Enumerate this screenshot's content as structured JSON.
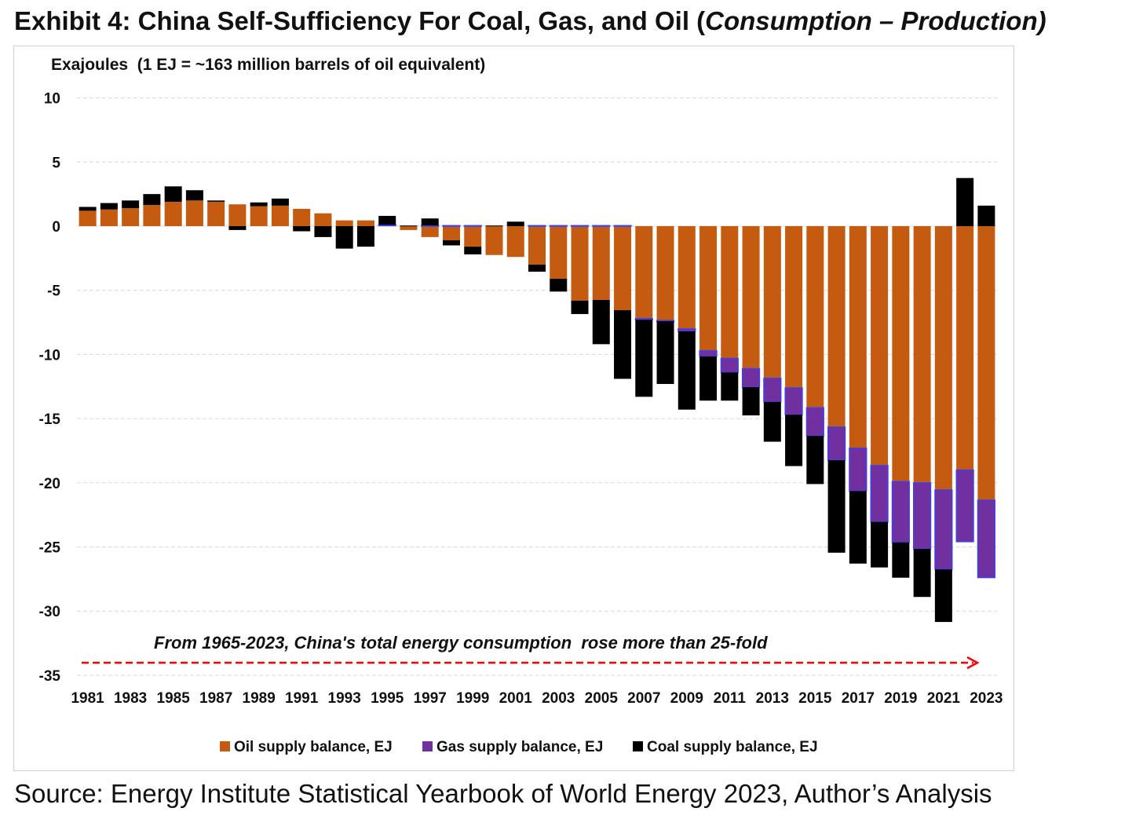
{
  "title_main": "Exhibit 4: China Self-Sufficiency For Coal, Gas, and Oil (",
  "title_italic": "Consumption – Production)",
  "source": "Source: Energy Institute Statistical Yearbook of World Energy 2023, Author’s Analysis",
  "chart_data": {
    "type": "bar",
    "stacked": true,
    "ylabel": "Exajoules  (1 EJ = ~163 million barrels of oil equivalent)",
    "ylim": [
      -35,
      10
    ],
    "yticks": [
      10,
      5,
      0,
      -5,
      -10,
      -15,
      -20,
      -25,
      -30,
      -35
    ],
    "grid": true,
    "legend_placement": "bottom",
    "annotation": "From 1965-2023, China's total energy consumption  rose more than 25-fold",
    "categories": [
      1981,
      1982,
      1983,
      1984,
      1985,
      1986,
      1987,
      1988,
      1989,
      1990,
      1991,
      1992,
      1993,
      1994,
      1995,
      1996,
      1997,
      1998,
      1999,
      2000,
      2001,
      2002,
      2003,
      2004,
      2005,
      2006,
      2007,
      2008,
      2009,
      2010,
      2011,
      2012,
      2013,
      2014,
      2015,
      2016,
      2017,
      2018,
      2019,
      2020,
      2021,
      2022,
      2023
    ],
    "xtick_labels": [
      "1981",
      "1983",
      "1985",
      "1987",
      "1989",
      "1991",
      "1993",
      "1995",
      "1997",
      "1999",
      "2001",
      "2003",
      "2005",
      "2007",
      "2009",
      "2011",
      "2013",
      "2015",
      "2017",
      "2019",
      "2021",
      "2023"
    ],
    "series": [
      {
        "name": "Oil supply balance, EJ",
        "color": "#C55A11",
        "values": [
          1.2,
          1.3,
          1.4,
          1.65,
          1.9,
          2.0,
          1.9,
          1.7,
          1.55,
          1.6,
          1.35,
          1.0,
          0.45,
          0.45,
          0.05,
          -0.3,
          -0.85,
          -1.1,
          -1.6,
          -2.25,
          -2.4,
          -3.0,
          -4.1,
          -5.8,
          -5.75,
          -6.55,
          -7.2,
          -7.35,
          -8.0,
          -9.7,
          -10.3,
          -11.1,
          -11.85,
          -12.6,
          -14.15,
          -15.65,
          -17.3,
          -18.65,
          -19.9,
          -20.0,
          -20.55,
          -19.0,
          -21.35
        ]
      },
      {
        "name": "Gas supply balance, EJ",
        "color": "#7030A0",
        "values": [
          0,
          0,
          0,
          0,
          0,
          0,
          0,
          0,
          0,
          0,
          0,
          0,
          0,
          0,
          0.05,
          0,
          0.05,
          0.05,
          0.05,
          0,
          0,
          0.05,
          0.05,
          0.05,
          0.05,
          0.05,
          -0.1,
          -0.05,
          -0.2,
          -0.45,
          -1.1,
          -1.45,
          -1.85,
          -2.1,
          -2.2,
          -2.6,
          -3.35,
          -4.4,
          -4.75,
          -5.15,
          -6.2,
          -5.6,
          -6.05
        ]
      },
      {
        "name": "Coal supply balance, EJ",
        "color": "#000000",
        "values": [
          0.3,
          0.5,
          0.6,
          0.85,
          1.2,
          0.8,
          0.1,
          -0.3,
          0.3,
          0.55,
          -0.4,
          -0.85,
          -1.75,
          -1.6,
          0.7,
          0.05,
          0.55,
          -0.4,
          -0.6,
          0.05,
          0.35,
          -0.55,
          -1.0,
          -1.05,
          -3.45,
          -5.35,
          -6.0,
          -4.9,
          -6.1,
          -3.45,
          -2.2,
          -2.2,
          -3.1,
          -4.0,
          -3.75,
          -7.2,
          -5.65,
          -3.55,
          -2.75,
          -3.75,
          -4.1,
          3.75,
          1.6
        ]
      }
    ]
  }
}
